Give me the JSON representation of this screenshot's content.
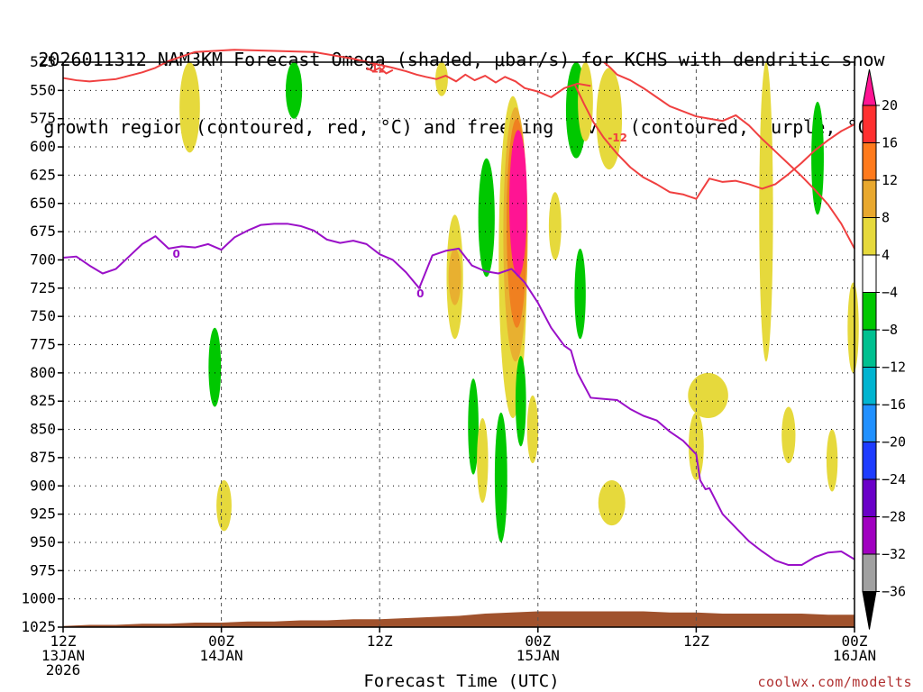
{
  "chart_data": {
    "type": "heatmap",
    "title_line1": "2026011312 NAM3KM Forecast Omega (shaded, μbar/s) for KCHS with dendritic snow",
    "title_line2": "growth region (contoured, red, °C) and freezing level (contoured, purple, °C)",
    "xlabel": "Forecast Time (UTC)",
    "ylabel": "",
    "credit": "coolwx.com/modelts",
    "y_axis": {
      "unit": "hPa",
      "reversed": true,
      "range": [
        1025,
        525
      ],
      "ticks": [
        525,
        550,
        575,
        600,
        625,
        650,
        675,
        700,
        725,
        750,
        775,
        800,
        825,
        850,
        875,
        900,
        925,
        950,
        975,
        1000,
        1025
      ]
    },
    "x_axis": {
      "unit": "hours since 2026-01-13 12Z",
      "range": [
        0,
        60
      ],
      "ticks": [
        {
          "h": 0,
          "l1": "12Z",
          "l2": "13JAN",
          "l3": "2026"
        },
        {
          "h": 12,
          "l1": "00Z",
          "l2": "14JAN",
          "l3": ""
        },
        {
          "h": 24,
          "l1": "12Z",
          "l2": "",
          "l3": ""
        },
        {
          "h": 36,
          "l1": "00Z",
          "l2": "15JAN",
          "l3": ""
        },
        {
          "h": 48,
          "l1": "12Z",
          "l2": "",
          "l3": ""
        },
        {
          "h": 60,
          "l1": "00Z",
          "l2": "16JAN",
          "l3": ""
        }
      ]
    },
    "grid": "dotted horizontal at each tick, dashed vertical at each tick",
    "colorbar": {
      "position": "right",
      "labels": [
        "20",
        "16",
        "12",
        "8",
        "4",
        "−4",
        "−8",
        "−12",
        "−16",
        "−20",
        "−24",
        "−28",
        "−32",
        "−36"
      ],
      "colors": [
        "#ff1493",
        "#ff3030",
        "#ff7a1c",
        "#e8a82e",
        "#e6d93c",
        "#ffffff",
        "#00c800",
        "#00c090",
        "#00b4d0",
        "#2090ff",
        "#1e3cff",
        "#6a00c8",
        "#a000c0",
        "#a0a0a0"
      ]
    },
    "colors": {
      "yellow": "#e6d93c",
      "gold": "#e8b030",
      "orange": "#f08020",
      "red": "#ff3030",
      "magenta": "#ff1493",
      "green": "#00c800",
      "dgz_contour": "#f04040",
      "freezing_contour": "#9a10c8",
      "ground": "#a0522d"
    },
    "omega_regions": [
      {
        "color": "yellow",
        "t": 9.6,
        "p": [
          525,
          605
        ],
        "w": 1.0
      },
      {
        "color": "green",
        "t": 17.5,
        "p": [
          525,
          575
        ],
        "w": 0.7
      },
      {
        "color": "green",
        "t": 11.5,
        "p": [
          760,
          830
        ],
        "w": 0.4
      },
      {
        "color": "yellow",
        "t": 12.2,
        "p": [
          895,
          940
        ],
        "w": 0.6
      },
      {
        "color": "yellow",
        "t": 28.7,
        "p": [
          525,
          555
        ],
        "w": 0.4
      },
      {
        "color": "yellow",
        "t": 29.7,
        "p": [
          660,
          770
        ],
        "w": 0.7
      },
      {
        "color": "gold",
        "t": 29.7,
        "p": [
          690,
          740
        ],
        "w": 0.4
      },
      {
        "color": "green",
        "t": 32.1,
        "p": [
          610,
          715
        ],
        "w": 0.7
      },
      {
        "color": "green",
        "t": 31.1,
        "p": [
          805,
          890
        ],
        "w": 0.25
      },
      {
        "color": "yellow",
        "t": 31.8,
        "p": [
          840,
          915
        ],
        "w": 0.3
      },
      {
        "color": "green",
        "t": 33.2,
        "p": [
          835,
          950
        ],
        "w": 0.4
      },
      {
        "color": "yellow",
        "t": 34.1,
        "p": [
          555,
          840
        ],
        "w": 1.6
      },
      {
        "color": "gold",
        "t": 34.3,
        "p": [
          565,
          790
        ],
        "w": 1.3
      },
      {
        "color": "orange",
        "t": 34.4,
        "p": [
          575,
          760
        ],
        "w": 1.0
      },
      {
        "color": "magenta",
        "t": 34.5,
        "p": [
          585,
          715
        ],
        "w": 0.8
      },
      {
        "color": "green",
        "t": 34.7,
        "p": [
          785,
          865
        ],
        "w": 0.25
      },
      {
        "color": "yellow",
        "t": 35.6,
        "p": [
          820,
          880
        ],
        "w": 0.3
      },
      {
        "color": "yellow",
        "t": 37.3,
        "p": [
          640,
          700
        ],
        "w": 0.4
      },
      {
        "color": "green",
        "t": 38.9,
        "p": [
          525,
          610
        ],
        "w": 1.0
      },
      {
        "color": "yellow",
        "t": 39.6,
        "p": [
          525,
          595
        ],
        "w": 0.6
      },
      {
        "color": "green",
        "t": 39.2,
        "p": [
          690,
          770
        ],
        "w": 0.3
      },
      {
        "color": "yellow",
        "t": 41.4,
        "p": [
          530,
          620
        ],
        "w": 1.4
      },
      {
        "color": "yellow",
        "t": 41.6,
        "p": [
          895,
          935
        ],
        "w": 1.5
      },
      {
        "color": "yellow",
        "t": 48.9,
        "p": [
          800,
          840
        ],
        "w": 2.5
      },
      {
        "color": "yellow",
        "t": 48.0,
        "p": [
          835,
          895
        ],
        "w": 0.6
      },
      {
        "color": "yellow",
        "t": 53.3,
        "p": [
          525,
          790
        ],
        "w": 0.5
      },
      {
        "color": "green",
        "t": 57.2,
        "p": [
          560,
          660
        ],
        "w": 0.4
      },
      {
        "color": "yellow",
        "t": 55.0,
        "p": [
          830,
          880
        ],
        "w": 0.5
      },
      {
        "color": "yellow",
        "t": 58.3,
        "p": [
          850,
          905
        ],
        "w": 0.3
      },
      {
        "color": "yellow",
        "t": 59.9,
        "p": [
          720,
          800
        ],
        "w": 0.3
      }
    ],
    "dgz_contours": [
      {
        "label": "-12",
        "t": [
          0,
          1,
          2,
          3,
          4,
          5,
          6,
          7,
          8,
          9,
          10,
          13,
          16,
          19,
          22,
          25,
          26,
          26.8,
          27.5,
          28.3,
          29,
          29.8,
          30.5,
          31.2,
          32,
          32.8,
          33.5,
          34.3,
          35,
          36,
          37,
          38,
          39,
          40
        ],
        "p": [
          539,
          541,
          542,
          541,
          540,
          537,
          534,
          530,
          524,
          520,
          516,
          514,
          515,
          516,
          522,
          530,
          533,
          536,
          538,
          540,
          537,
          542,
          536,
          541,
          537,
          543,
          538,
          542,
          548,
          551,
          556,
          548,
          544,
          546
        ]
      },
      {
        "label": "-12",
        "t": [
          38.8,
          39.5,
          40.2,
          41,
          42,
          43,
          44,
          45,
          46,
          47,
          48,
          49,
          50,
          51,
          52,
          53,
          54,
          55,
          56,
          57,
          58,
          59,
          60
        ],
        "p": [
          545,
          562,
          578,
          592,
          606,
          618,
          627,
          633,
          640,
          642,
          646,
          628,
          631,
          630,
          633,
          637,
          633,
          624,
          614,
          603,
          594,
          586,
          580
        ]
      },
      {
        "label": "",
        "t": [
          41,
          41.5,
          42,
          43,
          44,
          45,
          46,
          48,
          50,
          51,
          52,
          53,
          54,
          55,
          56,
          57,
          58,
          59,
          60
        ],
        "p": [
          525,
          530,
          536,
          541,
          548,
          556,
          564,
          573,
          577,
          572,
          581,
          593,
          604,
          615,
          626,
          638,
          651,
          668,
          690
        ]
      },
      {
        "label": "-12",
        "t": [
          23,
          23.5,
          24,
          24.5,
          25
        ],
        "p": [
          530,
          533,
          530,
          535,
          532
        ]
      }
    ],
    "freezing_contour": {
      "label": "0",
      "t": [
        0,
        1,
        2,
        3,
        4,
        5,
        6,
        7,
        8,
        9,
        10,
        11,
        12,
        13,
        14,
        15,
        16,
        17,
        18,
        19,
        20,
        21,
        22,
        23,
        24,
        25,
        26,
        27,
        28,
        29,
        30,
        31,
        32,
        33,
        34,
        35,
        36,
        37,
        38,
        38.5,
        39,
        40,
        41,
        42,
        43,
        44,
        45,
        46,
        47,
        48,
        48.3,
        48.7,
        49,
        50,
        51,
        52,
        53,
        54,
        55,
        56,
        57,
        58,
        59,
        60
      ],
      "p": [
        698,
        697,
        705,
        712,
        708,
        697,
        686,
        679,
        690,
        688,
        689,
        686,
        691,
        680,
        674,
        669,
        668,
        668,
        670,
        674,
        682,
        685,
        683,
        686,
        695,
        700,
        711,
        725,
        696,
        692,
        690,
        705,
        710,
        712,
        708,
        720,
        738,
        760,
        776,
        780,
        800,
        822,
        823,
        824,
        832,
        838,
        842,
        852,
        860,
        872,
        895,
        903,
        902,
        925,
        937,
        949,
        958,
        966,
        970,
        970,
        963,
        959,
        958,
        965
      ]
    },
    "ground": {
      "t": [
        0,
        2,
        4,
        6,
        8,
        10,
        12,
        14,
        16,
        18,
        20,
        22,
        24,
        26,
        28,
        30,
        32,
        34,
        36,
        38,
        40,
        42,
        44,
        46,
        48,
        50,
        52,
        54,
        56,
        58,
        60
      ],
      "p": [
        1024,
        1023,
        1023,
        1022,
        1022,
        1021,
        1021,
        1020,
        1020,
        1019,
        1019,
        1018,
        1018,
        1017,
        1016,
        1015,
        1013,
        1012,
        1011,
        1011,
        1011,
        1011,
        1011,
        1012,
        1012,
        1013,
        1013,
        1013,
        1013,
        1014,
        1014
      ]
    }
  }
}
